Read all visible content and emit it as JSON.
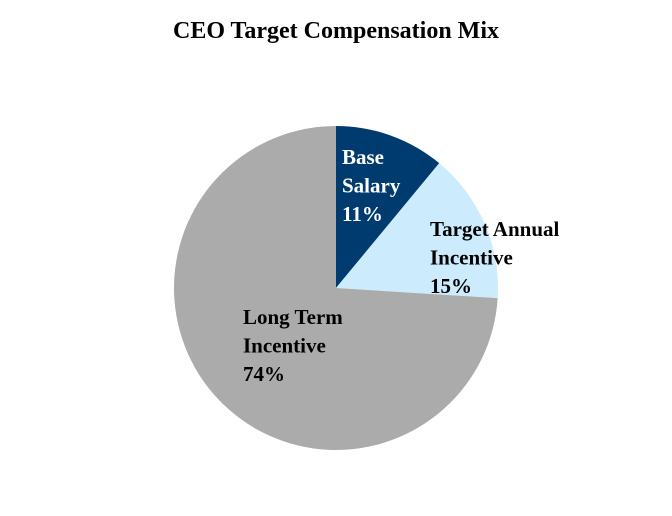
{
  "chart_data": {
    "type": "pie",
    "title": "CEO Target Compensation Mix",
    "slices": [
      {
        "label_lines": [
          "Base",
          "Salary"
        ],
        "value": 11,
        "value_label": "11%",
        "color": "#003B6F",
        "label_color": "#FFFFFF"
      },
      {
        "label_lines": [
          "Target Annual",
          "Incentive"
        ],
        "value": 15,
        "value_label": "15%",
        "color": "#CCEBFC",
        "label_color": "#000000"
      },
      {
        "label_lines": [
          "Long Term",
          "Incentive"
        ],
        "value": 74,
        "value_label": "74%",
        "color": "#ABABAB",
        "label_color": "#000000"
      }
    ],
    "start_angle": "12 o'clock",
    "direction": "clockwise",
    "legend": "none"
  }
}
